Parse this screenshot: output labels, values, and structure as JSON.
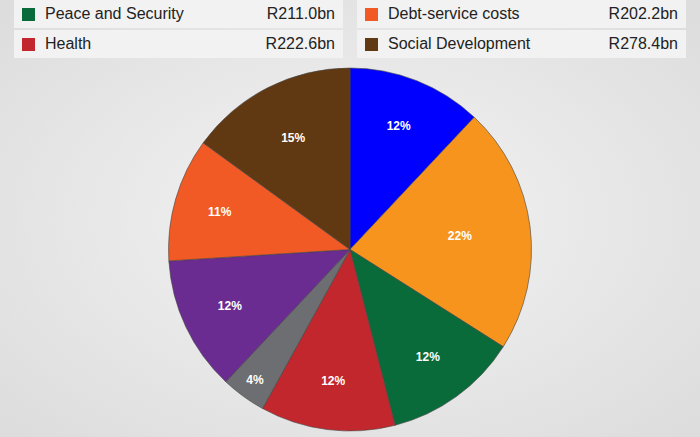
{
  "chart_data": {
    "type": "pie",
    "categories": [
      null,
      null,
      "Peace and Security",
      "Health",
      null,
      null,
      "Debt-service costs",
      "Social Development"
    ],
    "values": [
      12,
      22,
      12,
      12,
      4,
      12,
      11,
      15
    ],
    "value_labels": [
      "12%",
      "22%",
      "12%",
      "12%",
      "4%",
      "12%",
      "11%",
      "15%"
    ],
    "amounts": [
      null,
      null,
      211.0,
      222.6,
      null,
      null,
      202.2,
      278.4
    ],
    "amount_labels": [
      null,
      null,
      "R211.0bn",
      "R222.6bn",
      null,
      null,
      "R202.2bn",
      "R278.4bn"
    ],
    "colors": [
      "#0000ff",
      "#f7941d",
      "#0a6b3a",
      "#c1272d",
      "#6d6e71",
      "#6a2c91",
      "#f15a24",
      "#603913"
    ],
    "data_labels": true
  }
}
